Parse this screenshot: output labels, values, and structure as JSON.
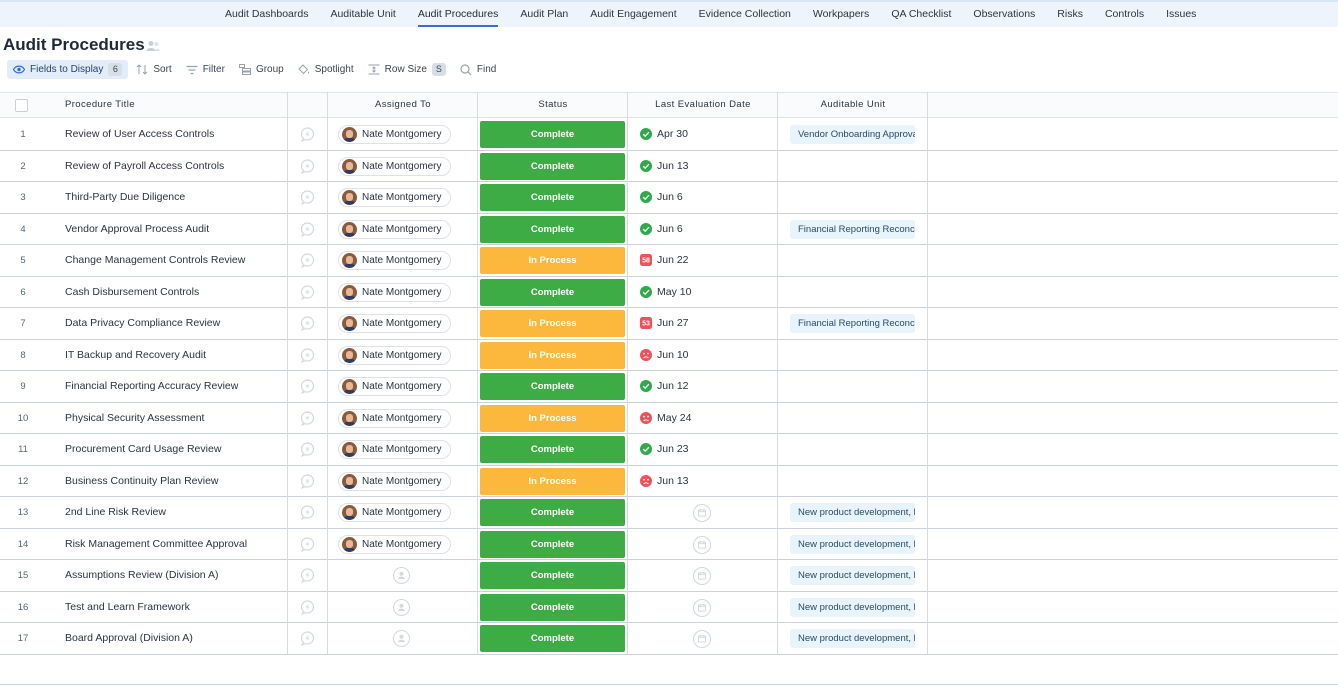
{
  "nav": {
    "tabs": [
      {
        "label": "Audit Dashboards"
      },
      {
        "label": "Auditable Unit"
      },
      {
        "label": "Audit Procedures"
      },
      {
        "label": "Audit Plan"
      },
      {
        "label": "Audit Engagement"
      },
      {
        "label": "Evidence Collection"
      },
      {
        "label": "Workpapers"
      },
      {
        "label": "QA Checklist"
      },
      {
        "label": "Observations"
      },
      {
        "label": "Risks"
      },
      {
        "label": "Controls"
      },
      {
        "label": "Issues"
      }
    ],
    "active_tab": "Audit Procedures"
  },
  "page": {
    "title": "Audit Procedures"
  },
  "toolbar": {
    "fields_label": "Fields to Display",
    "fields_count": "6",
    "sort_label": "Sort",
    "filter_label": "Filter",
    "group_label": "Group",
    "spotlight_label": "Spotlight",
    "rowsize_label": "Row Size",
    "rowsize_value": "S",
    "find_label": "Find"
  },
  "columns": {
    "procedure_title": "Procedure Title",
    "assigned_to": "Assigned To",
    "status": "Status",
    "last_eval": "Last Evaluation Date",
    "auditable_unit": "Auditable Unit"
  },
  "colors": {
    "complete": "#3eac45",
    "in_process": "#fbb83c",
    "check": "#2faa4a",
    "overdue": "#f0505a",
    "accent": "#2f6fe0"
  },
  "rows": [
    {
      "num": "1",
      "title": "Review of User Access Controls",
      "assignee": "Nate Montgomery",
      "status": "Complete",
      "date_icon": "check-circle-icon",
      "date": "Apr 30",
      "unit": "Vendor Onboarding Approval"
    },
    {
      "num": "2",
      "title": "Review of Payroll Access Controls",
      "assignee": "Nate Montgomery",
      "status": "Complete",
      "date_icon": "check-circle-icon",
      "date": "Jun 13",
      "unit": ""
    },
    {
      "num": "3",
      "title": "Third-Party Due Diligence",
      "assignee": "Nate Montgomery",
      "status": "Complete",
      "date_icon": "check-circle-icon",
      "date": "Jun 6",
      "unit": ""
    },
    {
      "num": "4",
      "title": "Vendor Approval Process Audit",
      "assignee": "Nate Montgomery",
      "status": "Complete",
      "date_icon": "check-circle-icon",
      "date": "Jun 6",
      "unit": "Financial Reporting Reconciliation"
    },
    {
      "num": "5",
      "title": "Change Management Controls Review",
      "assignee": "Nate Montgomery",
      "status": "In Process",
      "date_icon": "overdue-badge-icon",
      "date_badge": "58",
      "date": "Jun 22",
      "unit": ""
    },
    {
      "num": "6",
      "title": "Cash Disbursement Controls",
      "assignee": "Nate Montgomery",
      "status": "Complete",
      "date_icon": "check-circle-icon",
      "date": "May 10",
      "unit": ""
    },
    {
      "num": "7",
      "title": "Data Privacy Compliance Review",
      "assignee": "Nate Montgomery",
      "status": "In Process",
      "date_icon": "overdue-badge-icon",
      "date_badge": "53",
      "date": "Jun 27",
      "unit": "Financial Reporting Reconciliation"
    },
    {
      "num": "8",
      "title": "IT Backup and Recovery Audit",
      "assignee": "Nate Montgomery",
      "status": "In Process",
      "date_icon": "sad-face-icon",
      "date": "Jun 10",
      "unit": ""
    },
    {
      "num": "9",
      "title": "Financial Reporting Accuracy Review",
      "assignee": "Nate Montgomery",
      "status": "Complete",
      "date_icon": "check-circle-icon",
      "date": "Jun 12",
      "unit": ""
    },
    {
      "num": "10",
      "title": "Physical Security Assessment",
      "assignee": "Nate Montgomery",
      "status": "In Process",
      "date_icon": "sad-face-icon",
      "date": "May 24",
      "unit": ""
    },
    {
      "num": "11",
      "title": "Procurement Card Usage Review",
      "assignee": "Nate Montgomery",
      "status": "Complete",
      "date_icon": "check-circle-icon",
      "date": "Jun 23",
      "unit": ""
    },
    {
      "num": "12",
      "title": "Business Continuity Plan Review",
      "assignee": "Nate Montgomery",
      "status": "In Process",
      "date_icon": "sad-face-icon",
      "date": "Jun 13",
      "unit": ""
    },
    {
      "num": "13",
      "title": "2nd Line Risk Review",
      "assignee": "Nate Montgomery",
      "status": "Complete",
      "date_icon": "",
      "date": "",
      "unit": "New product development, launch"
    },
    {
      "num": "14",
      "title": "Risk Management Committee Approval",
      "assignee": "Nate Montgomery",
      "status": "Complete",
      "date_icon": "",
      "date": "",
      "unit": "New product development, launch"
    },
    {
      "num": "15",
      "title": "Assumptions Review (Division A)",
      "assignee": "",
      "status": "Complete",
      "date_icon": "",
      "date": "",
      "unit": "New product development, launch"
    },
    {
      "num": "16",
      "title": "Test and Learn Framework",
      "assignee": "",
      "status": "Complete",
      "date_icon": "",
      "date": "",
      "unit": "New product development, launch"
    },
    {
      "num": "17",
      "title": "Board Approval (Division A)",
      "assignee": "",
      "status": "Complete",
      "date_icon": "",
      "date": "",
      "unit": "New product development, launch"
    }
  ]
}
